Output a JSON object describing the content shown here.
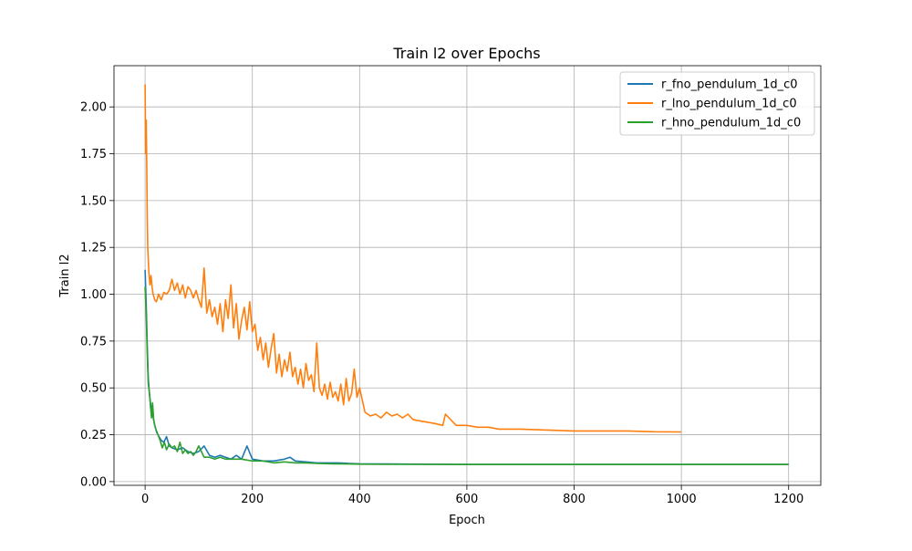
{
  "chart_data": {
    "type": "line",
    "title": "Train l2 over Epochs",
    "xlabel": "Epoch",
    "ylabel": "Train l2",
    "xlim": [
      -58,
      1260
    ],
    "ylim": [
      -0.02,
      2.22
    ],
    "xticks": [
      0,
      200,
      400,
      600,
      800,
      1000,
      1200
    ],
    "yticks": [
      0.0,
      0.25,
      0.5,
      0.75,
      1.0,
      1.25,
      1.5,
      1.75,
      2.0
    ],
    "x_tick_labels": [
      "0",
      "200",
      "400",
      "600",
      "800",
      "1000",
      "1200"
    ],
    "y_tick_labels": [
      "0.00",
      "0.25",
      "0.50",
      "0.75",
      "1.00",
      "1.25",
      "1.50",
      "1.75",
      "2.00"
    ],
    "grid": true,
    "legend_position": "top-right",
    "series": [
      {
        "name": "r_fno_pendulum_1d_c0",
        "color": "#1f77b4",
        "x": [
          0,
          2,
          4,
          6,
          8,
          10,
          14,
          18,
          22,
          26,
          30,
          35,
          40,
          45,
          50,
          60,
          70,
          80,
          90,
          100,
          110,
          120,
          130,
          140,
          150,
          160,
          170,
          180,
          190,
          200,
          220,
          240,
          260,
          270,
          280,
          300,
          320,
          340,
          360,
          380,
          400,
          450,
          500,
          600,
          700,
          800,
          900,
          1000,
          1100,
          1200
        ],
        "y": [
          1.13,
          0.95,
          0.72,
          0.55,
          0.47,
          0.42,
          0.36,
          0.3,
          0.26,
          0.24,
          0.22,
          0.21,
          0.24,
          0.19,
          0.18,
          0.17,
          0.18,
          0.16,
          0.15,
          0.16,
          0.19,
          0.14,
          0.13,
          0.14,
          0.13,
          0.12,
          0.14,
          0.12,
          0.19,
          0.12,
          0.11,
          0.11,
          0.12,
          0.13,
          0.11,
          0.105,
          0.1,
          0.1,
          0.1,
          0.097,
          0.095,
          0.094,
          0.093,
          0.092,
          0.092,
          0.092,
          0.092,
          0.092,
          0.092,
          0.092
        ]
      },
      {
        "name": "r_lno_pendulum_1d_c0",
        "color": "#ff7f0e",
        "x": [
          0,
          1,
          2,
          3,
          4,
          5,
          7,
          9,
          11,
          13,
          15,
          18,
          21,
          25,
          30,
          35,
          40,
          45,
          50,
          55,
          60,
          65,
          70,
          75,
          80,
          85,
          90,
          95,
          100,
          105,
          110,
          115,
          120,
          125,
          130,
          135,
          140,
          145,
          150,
          155,
          160,
          165,
          170,
          175,
          180,
          185,
          190,
          195,
          200,
          205,
          210,
          215,
          220,
          225,
          230,
          235,
          240,
          245,
          250,
          255,
          260,
          265,
          270,
          275,
          280,
          285,
          290,
          295,
          300,
          305,
          310,
          315,
          320,
          325,
          330,
          335,
          340,
          345,
          350,
          355,
          360,
          365,
          370,
          375,
          380,
          385,
          390,
          395,
          400,
          410,
          420,
          430,
          440,
          450,
          460,
          470,
          480,
          490,
          500,
          520,
          540,
          555,
          560,
          580,
          600,
          620,
          640,
          660,
          680,
          700,
          750,
          800,
          850,
          900,
          950,
          1000
        ],
        "y": [
          2.12,
          1.75,
          1.93,
          1.7,
          1.4,
          1.25,
          1.12,
          1.05,
          1.1,
          1.04,
          1.0,
          0.97,
          0.96,
          1.0,
          0.97,
          1.01,
          1.0,
          1.02,
          1.08,
          1.02,
          1.06,
          1.0,
          1.05,
          0.98,
          1.04,
          1.02,
          0.98,
          1.02,
          0.97,
          0.93,
          1.14,
          0.9,
          0.97,
          0.88,
          0.93,
          0.84,
          0.95,
          0.8,
          0.97,
          0.87,
          1.05,
          0.82,
          0.95,
          0.76,
          0.86,
          0.93,
          0.81,
          0.96,
          0.8,
          0.84,
          0.7,
          0.77,
          0.65,
          0.74,
          0.61,
          0.71,
          0.79,
          0.58,
          0.68,
          0.56,
          0.65,
          0.59,
          0.69,
          0.56,
          0.61,
          0.52,
          0.6,
          0.5,
          0.63,
          0.54,
          0.57,
          0.48,
          0.74,
          0.5,
          0.46,
          0.52,
          0.44,
          0.53,
          0.45,
          0.48,
          0.43,
          0.52,
          0.41,
          0.55,
          0.43,
          0.47,
          0.6,
          0.45,
          0.5,
          0.37,
          0.35,
          0.36,
          0.34,
          0.37,
          0.35,
          0.36,
          0.34,
          0.36,
          0.33,
          0.32,
          0.31,
          0.3,
          0.36,
          0.3,
          0.3,
          0.29,
          0.29,
          0.28,
          0.28,
          0.28,
          0.275,
          0.27,
          0.27,
          0.27,
          0.266,
          0.265
        ]
      },
      {
        "name": "r_hno_pendulum_1d_c0",
        "color": "#2ca02c",
        "x": [
          0,
          2,
          4,
          6,
          8,
          10,
          12,
          14,
          16,
          18,
          20,
          24,
          28,
          32,
          36,
          40,
          45,
          50,
          55,
          60,
          65,
          70,
          75,
          80,
          85,
          90,
          95,
          100,
          110,
          120,
          130,
          140,
          150,
          160,
          180,
          200,
          220,
          240,
          260,
          280,
          300,
          320,
          350,
          380,
          400,
          450,
          500,
          600,
          700,
          800,
          900,
          1000,
          1100,
          1200
        ],
        "y": [
          1.04,
          0.9,
          0.68,
          0.52,
          0.48,
          0.4,
          0.34,
          0.42,
          0.33,
          0.3,
          0.28,
          0.25,
          0.22,
          0.18,
          0.21,
          0.17,
          0.2,
          0.18,
          0.19,
          0.16,
          0.21,
          0.15,
          0.17,
          0.15,
          0.16,
          0.14,
          0.16,
          0.19,
          0.13,
          0.13,
          0.12,
          0.13,
          0.12,
          0.12,
          0.12,
          0.11,
          0.11,
          0.1,
          0.105,
          0.1,
          0.1,
          0.097,
          0.095,
          0.094,
          0.093,
          0.092,
          0.092,
          0.091,
          0.091,
          0.091,
          0.091,
          0.091,
          0.091,
          0.091
        ]
      }
    ]
  }
}
